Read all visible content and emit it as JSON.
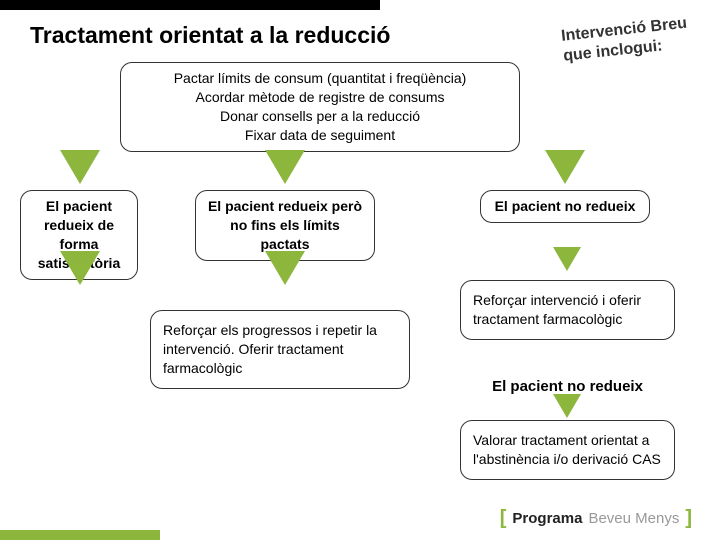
{
  "colors": {
    "accent": "#8cb63c",
    "text": "#000000",
    "border": "#333333",
    "background": "#ffffff",
    "logo_gray": "#999999"
  },
  "title": "Tractament orientat a la reducció",
  "annotation": "Intervenció Breu que inclogui:",
  "initial_box": {
    "line1": "Pactar límits de consum (quantitat i freqüència)",
    "line2": "Acordar mètode de registre de consums",
    "line3": "Donar consells per a la reducció",
    "line4": "Fixar data de seguiment"
  },
  "outcomes": {
    "o1": "El pacient redueix de forma satisfactòria",
    "o2": "El pacient redueix però no fins els límits pactats",
    "o3": "El pacient no redueix",
    "o4": "El pacient no redueix"
  },
  "actions": {
    "a": "Reforçar els progressos i repetir la intervenció.\nOferir tractament farmacològic",
    "b": "Reforçar intervenció i oferir tractament farmacològic",
    "c": "Valorar tractament orientat a l'abstinència i/o derivació CAS"
  },
  "logo": {
    "bracket_open": "[",
    "programa": "Programa",
    "brand": "Beveu Menys",
    "bracket_close": "]"
  }
}
